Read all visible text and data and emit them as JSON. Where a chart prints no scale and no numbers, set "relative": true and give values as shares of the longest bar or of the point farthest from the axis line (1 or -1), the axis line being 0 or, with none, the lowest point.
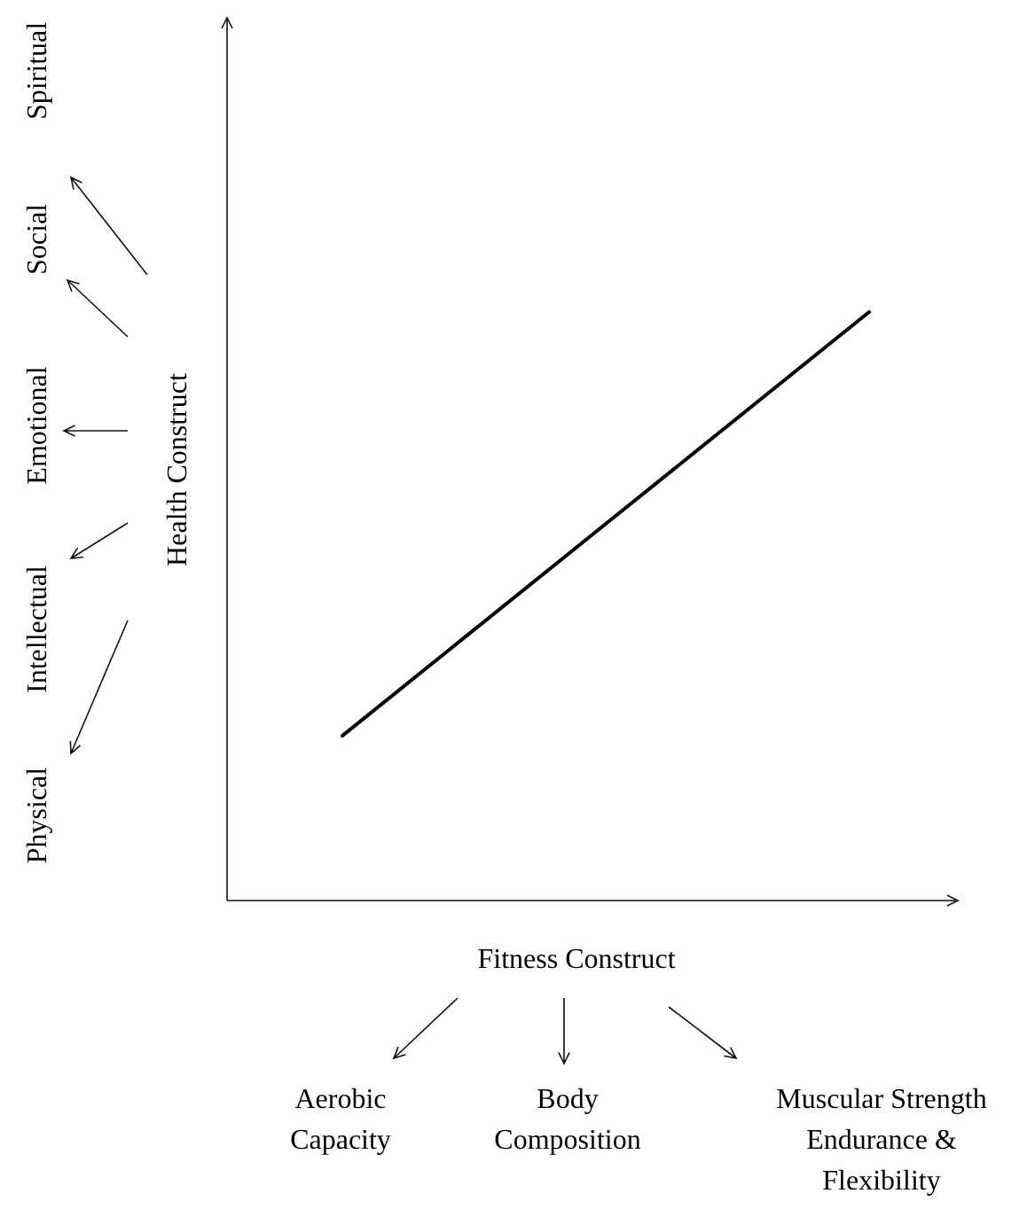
{
  "chart_data": {
    "type": "line",
    "relative": true,
    "xlabel": "Fitness Construct",
    "ylabel": "Health Construct",
    "categories": [
      null,
      null,
      null
    ],
    "series": [
      {
        "color": "#000000",
        "values": [
          0.28,
          0.64,
          1
        ]
      }
    ],
    "annotations": [
      "Spiritual",
      "Social",
      "Emotional",
      "Intellectual",
      "Physical",
      "Aerobic\nCapacity",
      "Body\nComposition",
      "Muscular Strength\nEndurance &\nFlexibility"
    ]
  }
}
